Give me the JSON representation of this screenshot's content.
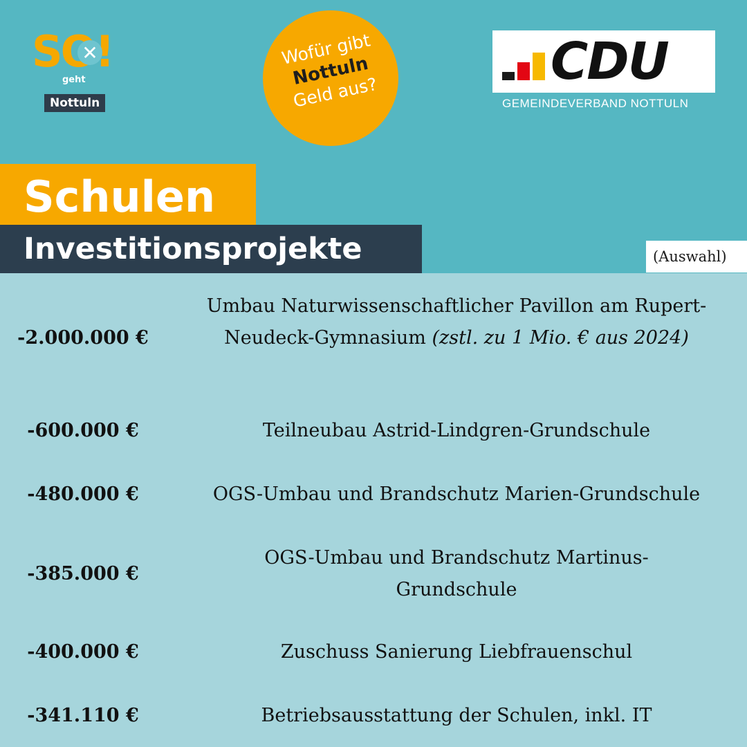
{
  "logos": {
    "so_logo_text": "SO!",
    "so_logo_sub": "geht",
    "so_logo_place": "Nottuln",
    "cdu_text": "CDU",
    "cdu_subtitle": "GEMEINDEVERBAND NOTTULN"
  },
  "badge": {
    "line1": "Wofür gibt",
    "line2": "Nottuln",
    "line3": "Geld aus?"
  },
  "title": {
    "main": "Schulen",
    "sub": "Investitionsprojekte",
    "note": "(Auswahl)"
  },
  "projects": [
    {
      "amount": "-2.000.000 €",
      "description": "Umbau Naturwissenschaftlicher Pavillon am Rupert-Neudeck-Gymnasium",
      "note": "(zstl. zu 1 Mio. € aus 2024)"
    },
    {
      "amount": "-600.000 €",
      "description": "Teilneubau Astrid-Lindgren-Grundschule"
    },
    {
      "amount": "-480.000 €",
      "description": "OGS-Umbau und Brandschutz Marien-Grundschule"
    },
    {
      "amount": "-385.000 €",
      "description": "OGS-Umbau und Brandschutz Martinus-Grundschule"
    },
    {
      "amount": "-400.000 €",
      "description": "Zuschuss Sanierung Liebfrauenschul"
    },
    {
      "amount": "-341.110 €",
      "description": "Betriebsausstattung der Schulen, inkl. IT"
    }
  ],
  "colors": {
    "top_background": "#55b7c2",
    "bottom_background": "#a6d5dc",
    "accent_orange": "#f7a800",
    "dark_navy": "#2c3e4e",
    "cdu_red": "#e30613",
    "cdu_yellow": "#f7b900"
  }
}
